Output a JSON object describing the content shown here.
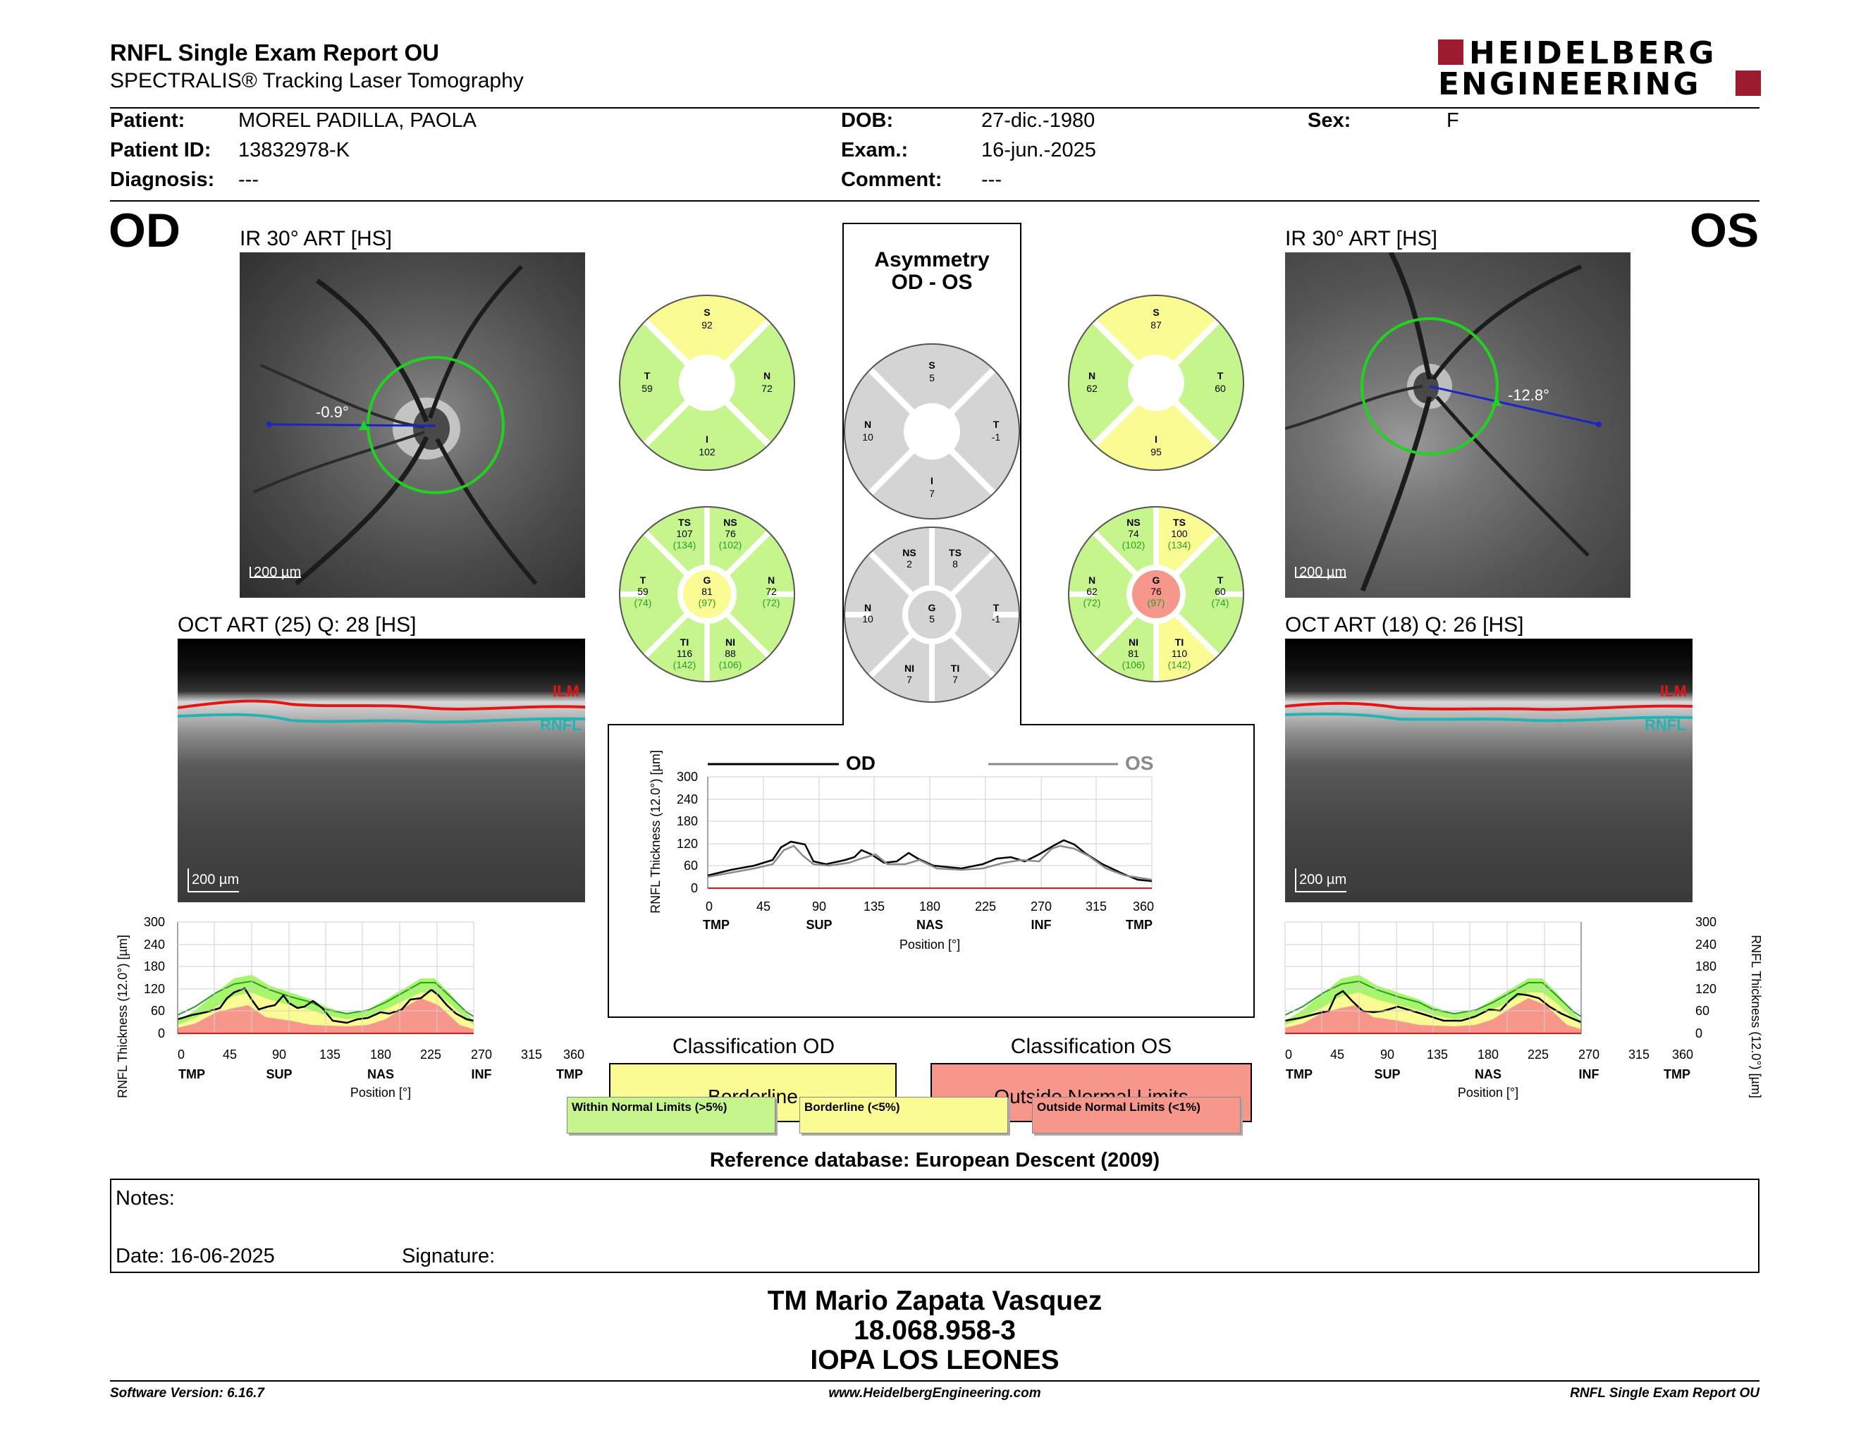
{
  "header": {
    "title": "RNFL Single Exam Report OU",
    "subtitle": "SPECTRALIS® Tracking Laser Tomography",
    "logo_line1": "HEIDELBERG",
    "logo_line2": "ENGINEERING"
  },
  "patient": {
    "patient_label": "Patient:",
    "patient_value": "MOREL PADILLA, PAOLA",
    "id_label": "Patient ID:",
    "id_value": "13832978-K",
    "diag_label": "Diagnosis:",
    "diag_value": "---",
    "dob_label": "DOB:",
    "dob_value": "27-dic.-1980",
    "exam_label": "Exam.:",
    "exam_value": "16-jun.-2025",
    "comment_label": "Comment:",
    "comment_value": "---",
    "sex_label": "Sex:",
    "sex_value": "F"
  },
  "od": {
    "eye": "OD",
    "ir_title": "IR 30° ART [HS]",
    "angle": "-0.9°",
    "scale": "200 µm",
    "oct_title": "OCT ART (25) Q: 28 [HS]",
    "ilm": "ILM",
    "rnfl": "RNFL",
    "oct_scale": "200 µm",
    "sectors4": {
      "S": "92",
      "T": "59",
      "N": "72",
      "I": "102"
    },
    "sectors6": {
      "TS": "107",
      "TS_ref": "(134)",
      "NS": "76",
      "NS_ref": "(102)",
      "T": "59",
      "T_ref": "(74)",
      "G": "81",
      "G_ref": "(97)",
      "N": "72",
      "N_ref": "(72)",
      "TI": "116",
      "TI_ref": "(142)",
      "NI": "88",
      "NI_ref": "(106)"
    }
  },
  "os": {
    "eye": "OS",
    "ir_title": "IR 30° ART [HS]",
    "angle": "-12.8°",
    "scale": "200 µm",
    "oct_title": "OCT ART (18) Q: 26 [HS]",
    "ilm": "ILM",
    "rnfl": "RNFL",
    "oct_scale": "200 µm",
    "sectors4": {
      "S": "87",
      "N": "62",
      "T": "60",
      "I": "95"
    },
    "sectors6": {
      "NS": "74",
      "NS_ref": "(102)",
      "TS": "100",
      "TS_ref": "(134)",
      "N": "62",
      "N_ref": "(72)",
      "G": "76",
      "G_ref": "(97)",
      "T": "60",
      "T_ref": "(74)",
      "NI": "81",
      "NI_ref": "(106)",
      "TI": "110",
      "TI_ref": "(142)"
    }
  },
  "asymmetry": {
    "title1": "Asymmetry",
    "title2": "OD - OS",
    "sectors4": {
      "S": "5",
      "N": "10",
      "T": "-1",
      "I": "7"
    },
    "sectors6": {
      "NS": "2",
      "TS": "8",
      "N": "10",
      "G": "5",
      "T": "-1",
      "NI": "7",
      "TI": "7"
    }
  },
  "plots": {
    "ylabel": "RNFL Thickness (12.0°) [µm]",
    "xlabel": "Position [°]",
    "yticks": [
      "300",
      "240",
      "180",
      "120",
      "60",
      "0"
    ],
    "xticks": [
      "0",
      "45",
      "90",
      "135",
      "180",
      "225",
      "270",
      "315",
      "360"
    ],
    "xregions": [
      "TMP",
      "SUP",
      "NAS",
      "INF",
      "TMP"
    ],
    "legend_od": "OD",
    "legend_os": "OS"
  },
  "classification": {
    "od_title": "Classification OD",
    "od_value": "Borderline",
    "os_title": "Classification OS",
    "os_value": "Outside Normal Limits",
    "legend_wnl": "Within Normal Limits (>5%)",
    "legend_bl": "Borderline (<5%)",
    "legend_onl": "Outside Normal Limits (<1%)"
  },
  "reference": "Reference database: European Descent (2009)",
  "notes": {
    "notes_label": "Notes:",
    "date_label": "Date: 16-06-2025",
    "signature_label": "Signature:"
  },
  "signer": {
    "name": "TM Mario Zapata Vasquez",
    "id": "18.068.958-3",
    "clinic": "IOPA LOS LEONES"
  },
  "footer": {
    "version": "Software Version: 6.16.7",
    "url": "www.HeidelbergEngineering.com",
    "report": "RNFL Single Exam Report OU"
  },
  "colors": {
    "wnl": "#c6f58e",
    "borderline": "#fbfb94",
    "onl": "#f7968b",
    "brand": "#9d1b2e",
    "green_circle": "#1fd31f",
    "blue_line": "#1c24c6"
  }
}
